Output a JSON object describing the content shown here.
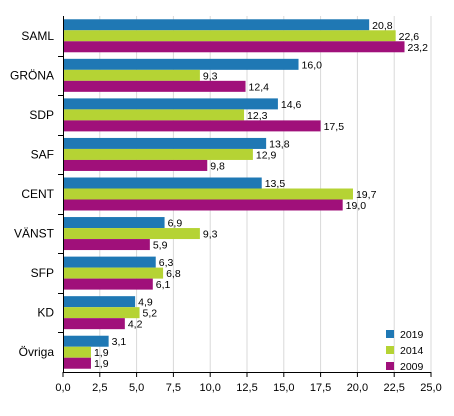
{
  "chart_data": {
    "type": "bar",
    "orientation": "horizontal",
    "categories": [
      "SAML",
      "GRÖNA",
      "SDP",
      "SAF",
      "CENT",
      "VÄNST",
      "SFP",
      "KD",
      "Övriga"
    ],
    "series": [
      {
        "name": "2019",
        "color": "#1f78b4",
        "values": [
          20.8,
          16.0,
          14.6,
          13.8,
          13.5,
          6.9,
          6.3,
          4.9,
          3.1
        ],
        "labels": [
          "20,8",
          "16,0",
          "14,6",
          "13,8",
          "13,5",
          "6,9",
          "6,3",
          "4,9",
          "3,1"
        ]
      },
      {
        "name": "2014",
        "color": "#b5d334",
        "values": [
          22.6,
          9.3,
          12.3,
          12.9,
          19.7,
          9.3,
          6.8,
          5.2,
          1.9
        ],
        "labels": [
          "22,6",
          "9,3",
          "12,3",
          "12,9",
          "19,7",
          "9,3",
          "6,8",
          "5,2",
          "1,9"
        ]
      },
      {
        "name": "2009",
        "color": "#a0107a",
        "values": [
          23.2,
          12.4,
          17.5,
          9.8,
          19.0,
          5.9,
          6.1,
          4.2,
          1.9
        ],
        "labels": [
          "23,2",
          "12,4",
          "17,5",
          "9,8",
          "19,0",
          "5,9",
          "6,1",
          "4,2",
          "1,9"
        ]
      }
    ],
    "xticks": [
      0,
      2.5,
      5,
      7.5,
      10,
      12.5,
      15,
      17.5,
      20,
      22.5,
      25
    ],
    "xtick_labels": [
      "0,0",
      "2,5",
      "5,0",
      "7,5",
      "10,0",
      "12,5",
      "15,0",
      "17,5",
      "20,0",
      "22,5",
      "25,0"
    ],
    "xlim": [
      0,
      25
    ],
    "grid": "vertical",
    "legend_position": "bottom-right",
    "title": "",
    "xlabel": "",
    "ylabel": ""
  }
}
